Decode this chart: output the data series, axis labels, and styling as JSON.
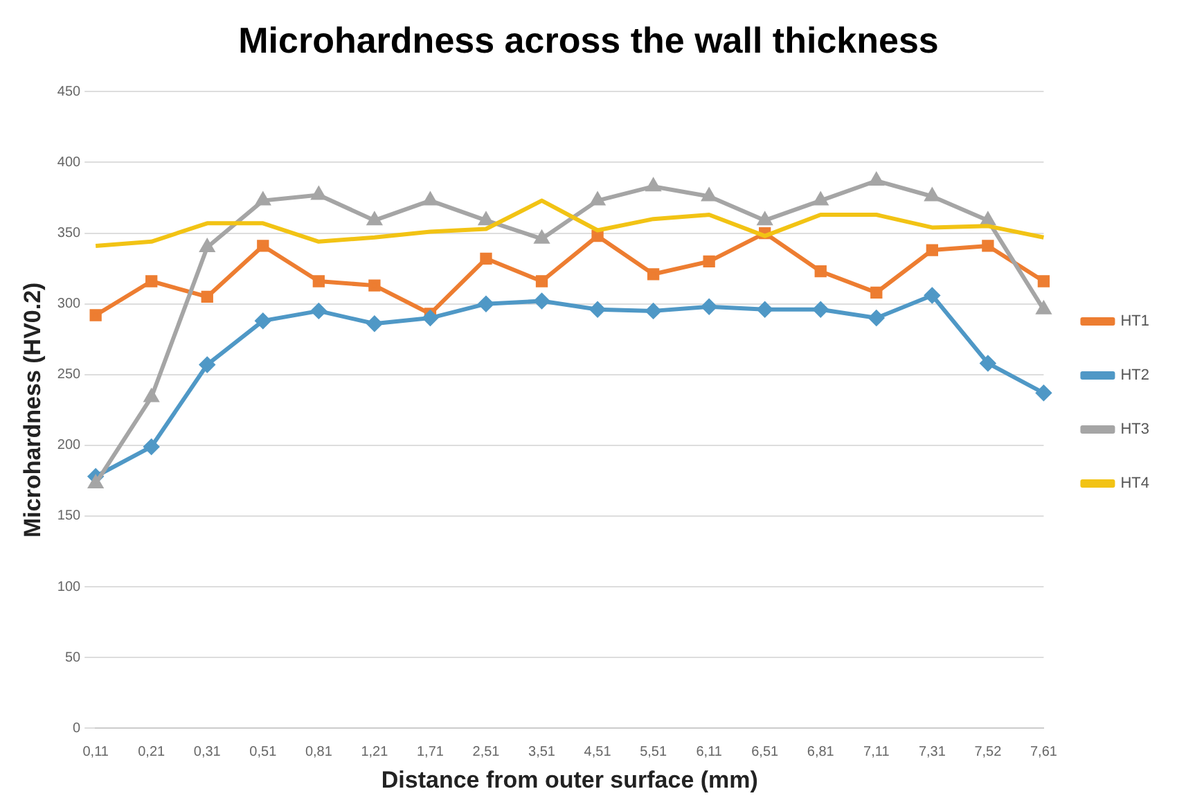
{
  "chart_data": {
    "type": "line",
    "title": "Microhardness across the wall thickness",
    "xlabel": "Distance from outer surface (mm)",
    "ylabel": "Microhardness (HV0.2)",
    "categories": [
      "0,11",
      "0,21",
      "0,31",
      "0,51",
      "0,81",
      "1,21",
      "1,71",
      "2,51",
      "3,51",
      "4,51",
      "5,51",
      "6,11",
      "6,51",
      "6,81",
      "7,11",
      "7,31",
      "7,52",
      "7,61"
    ],
    "series": [
      {
        "name": "HT1",
        "color": "#ed7d31",
        "marker": "square",
        "values": [
          292,
          316,
          305,
          341,
          316,
          313,
          293,
          332,
          316,
          348,
          321,
          330,
          350,
          323,
          308,
          338,
          341,
          316
        ]
      },
      {
        "name": "HT2",
        "color": "#4f98c6",
        "marker": "diamond",
        "values": [
          178,
          199,
          257,
          288,
          295,
          286,
          290,
          300,
          302,
          296,
          295,
          298,
          296,
          296,
          290,
          306,
          258,
          237
        ]
      },
      {
        "name": "HT3",
        "color": "#a5a5a5",
        "marker": "triangle",
        "values": [
          173,
          234,
          340,
          373,
          377,
          359,
          373,
          359,
          346,
          373,
          383,
          376,
          359,
          373,
          387,
          376,
          359,
          296
        ]
      },
      {
        "name": "HT4",
        "color": "#f2c314",
        "marker": "none",
        "values": [
          341,
          344,
          357,
          357,
          344,
          347,
          351,
          353,
          373,
          352,
          360,
          363,
          348,
          363,
          363,
          354,
          355,
          347
        ]
      }
    ],
    "ylim": [
      0,
      450
    ],
    "yticks": [
      0,
      50,
      100,
      150,
      200,
      250,
      300,
      350,
      400,
      450
    ],
    "grid": "y",
    "legend": "right",
    "line_style": "solid"
  }
}
